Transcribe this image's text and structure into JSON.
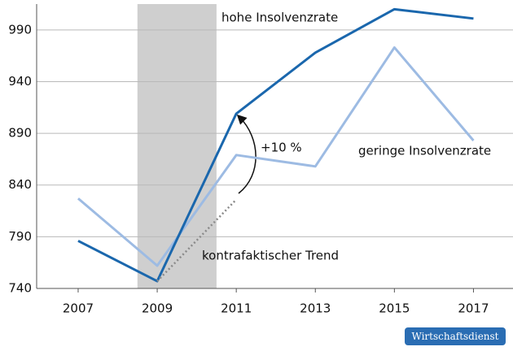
{
  "chart_data": {
    "type": "line",
    "x": [
      2007,
      2009,
      2011,
      2013,
      2015,
      2017
    ],
    "series": [
      {
        "name": "hohe Insolvenzrate",
        "color": "#1a67ad",
        "values": [
          786,
          747,
          909,
          968,
          1010,
          1001
        ]
      },
      {
        "name": "geringe Insolvenzrate",
        "color": "#9dbbe3",
        "values": [
          827,
          762,
          869,
          858,
          973,
          883
        ]
      },
      {
        "name": "kontrafaktischer Trend",
        "color": "#8a8a8a",
        "dashed": true,
        "values": [
          null,
          747,
          826,
          null,
          null,
          null
        ]
      }
    ],
    "annotation": "+10 %",
    "source": "Wirtschaftsdienst",
    "shade": [
      2008.5,
      2010.5
    ],
    "xlim": [
      2005.95,
      2018.0
    ],
    "xticks": [
      2007,
      2009,
      2011,
      2013,
      2015,
      2017
    ],
    "ylim": [
      740,
      1015
    ],
    "yticks": [
      740,
      790,
      840,
      890,
      940,
      990
    ],
    "grid": true
  }
}
